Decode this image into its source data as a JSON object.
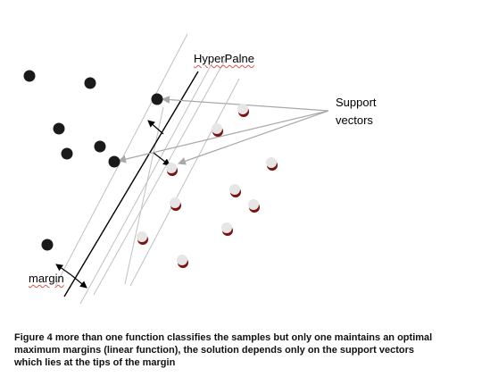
{
  "labels": {
    "hyperplane": "HyperPalne",
    "support_line1": "Support",
    "support_line2": "vectors",
    "margin": "margin"
  },
  "caption": "Figure 4 more than one function classifies the samples but only one maintains an optimal maximum margins (linear function), the solution depends only on the support vectors which lies at the tips of the margin",
  "colors": {
    "dark_point": "#1a1a1a",
    "light_point": "#e6e6e6",
    "light_point_shadow": "#7a1414",
    "thin_line": "#c0c0c0",
    "hyperplane": "#000000",
    "annotation_arrow": "#a8a8a8"
  }
}
